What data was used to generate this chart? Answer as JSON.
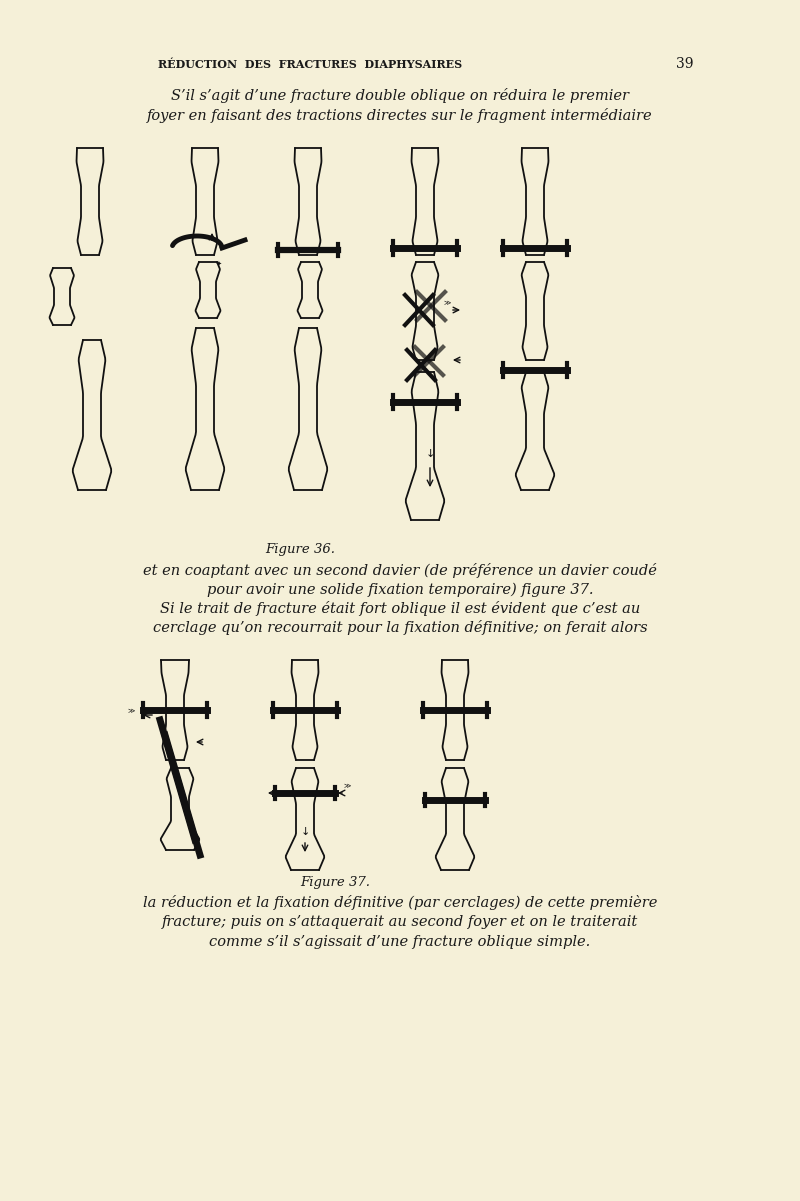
{
  "bg_color": "#f5f0d8",
  "text_color": "#1a1a1a",
  "header_text": "RÉDUCTION  DES  FRACTURES  DIAPHYSAIRES",
  "page_num": "39",
  "para1_line1": "S’il s’agit d’une fracture double oblique on réduira le premier",
  "para1_line2": "foyer en faisant des tractions directes sur le fragment intermédiaire",
  "fig36_caption": "Figure 36.",
  "para2_line1": "et en coaptant avec un second davier (de préférence un davier coudé",
  "para2_line2": "pour avoir une solide fixation temporaire) figure 37.",
  "para3_line1": "Si le trait de fracture était fort oblique il est évident que c’est au",
  "para3_line2": "cerclage qu’on recourrait pour la fixation définitive; on ferait alors",
  "fig37_caption": "Figure 37.",
  "para4_line1": "la réduction et la fixation définitive (par cerclages) de cette première",
  "para4_line2": "fracture; puis on s’attaquerait au second foyer et on le traiterait",
  "para4_line3": "comme s’il s’agissait d’une fracture oblique simple."
}
